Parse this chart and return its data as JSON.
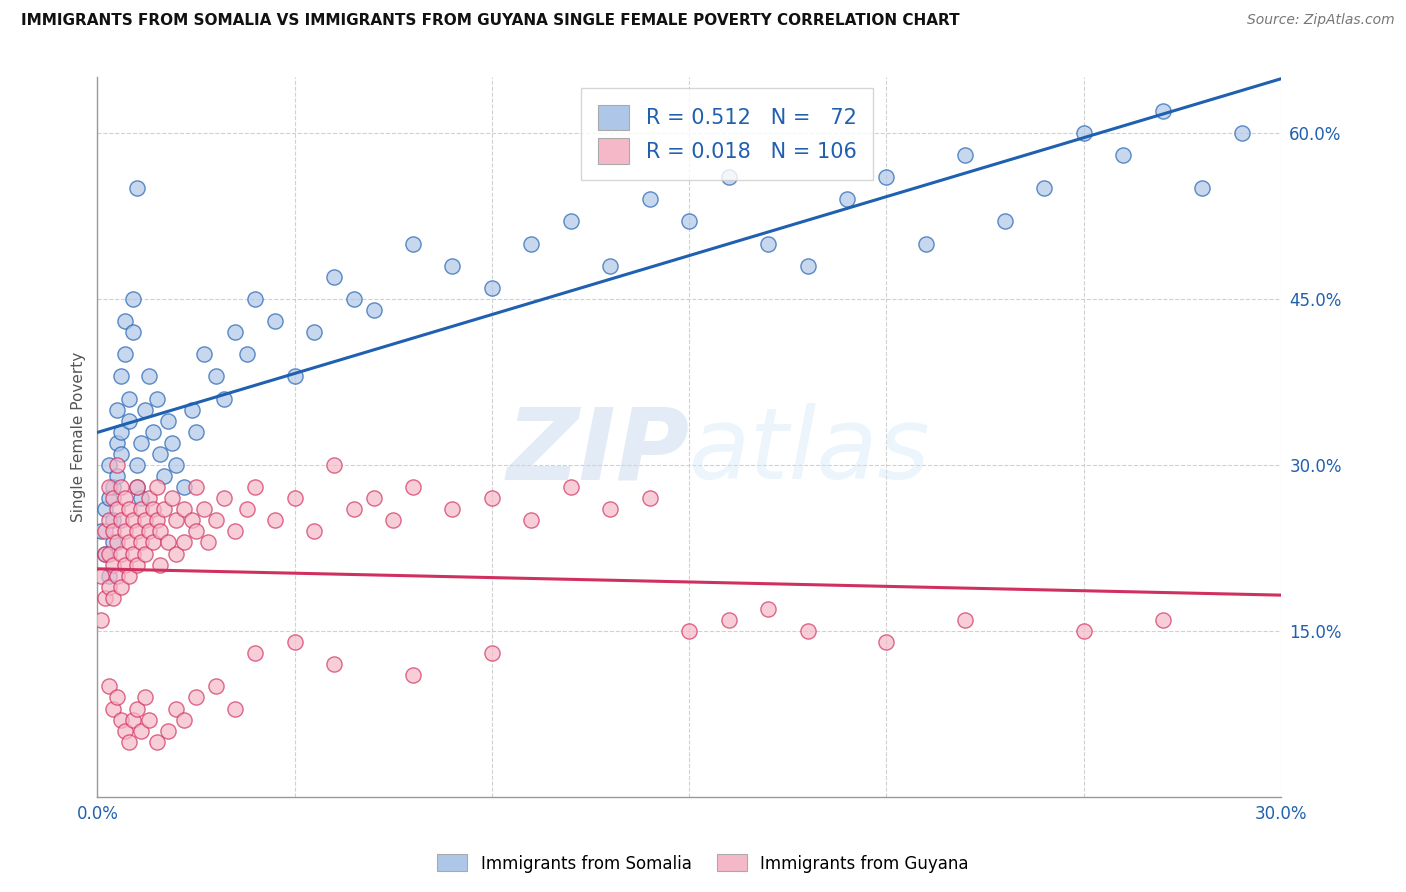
{
  "title": "IMMIGRANTS FROM SOMALIA VS IMMIGRANTS FROM GUYANA SINGLE FEMALE POVERTY CORRELATION CHART",
  "source": "Source: ZipAtlas.com",
  "ylabel": "Single Female Poverty",
  "xlim": [
    0.0,
    0.3
  ],
  "ylim": [
    0.0,
    0.65
  ],
  "R_somalia": 0.512,
  "N_somalia": 72,
  "R_guyana": 0.018,
  "N_guyana": 106,
  "color_somalia": "#aec6e8",
  "color_guyana": "#f5b8c8",
  "line_color_somalia": "#2060b0",
  "line_color_guyana": "#d03060",
  "accent_color": "#2060b0",
  "watermark_zip": "ZIP",
  "watermark_atlas": "atlas",
  "legend_somalia": "Immigrants from Somalia",
  "legend_guyana": "Immigrants from Guyana",
  "somalia_x": [
    0.001,
    0.002,
    0.002,
    0.003,
    0.003,
    0.003,
    0.004,
    0.004,
    0.004,
    0.005,
    0.005,
    0.005,
    0.006,
    0.006,
    0.006,
    0.007,
    0.007,
    0.008,
    0.008,
    0.009,
    0.009,
    0.01,
    0.01,
    0.011,
    0.011,
    0.012,
    0.013,
    0.014,
    0.015,
    0.016,
    0.017,
    0.018,
    0.019,
    0.02,
    0.022,
    0.024,
    0.025,
    0.027,
    0.03,
    0.032,
    0.035,
    0.038,
    0.04,
    0.045,
    0.05,
    0.055,
    0.06,
    0.065,
    0.07,
    0.08,
    0.09,
    0.1,
    0.11,
    0.12,
    0.13,
    0.14,
    0.15,
    0.16,
    0.17,
    0.18,
    0.19,
    0.2,
    0.21,
    0.22,
    0.23,
    0.24,
    0.25,
    0.26,
    0.27,
    0.28,
    0.29,
    0.01
  ],
  "somalia_y": [
    0.24,
    0.22,
    0.26,
    0.27,
    0.2,
    0.3,
    0.28,
    0.25,
    0.23,
    0.35,
    0.32,
    0.29,
    0.38,
    0.33,
    0.31,
    0.4,
    0.43,
    0.36,
    0.34,
    0.42,
    0.45,
    0.3,
    0.28,
    0.32,
    0.27,
    0.35,
    0.38,
    0.33,
    0.36,
    0.31,
    0.29,
    0.34,
    0.32,
    0.3,
    0.28,
    0.35,
    0.33,
    0.4,
    0.38,
    0.36,
    0.42,
    0.4,
    0.45,
    0.43,
    0.38,
    0.42,
    0.47,
    0.45,
    0.44,
    0.5,
    0.48,
    0.46,
    0.5,
    0.52,
    0.48,
    0.54,
    0.52,
    0.56,
    0.5,
    0.48,
    0.54,
    0.56,
    0.5,
    0.58,
    0.52,
    0.55,
    0.6,
    0.58,
    0.62,
    0.55,
    0.6,
    0.55
  ],
  "guyana_x": [
    0.001,
    0.001,
    0.002,
    0.002,
    0.002,
    0.003,
    0.003,
    0.003,
    0.003,
    0.004,
    0.004,
    0.004,
    0.004,
    0.005,
    0.005,
    0.005,
    0.005,
    0.006,
    0.006,
    0.006,
    0.006,
    0.007,
    0.007,
    0.007,
    0.008,
    0.008,
    0.008,
    0.009,
    0.009,
    0.01,
    0.01,
    0.01,
    0.011,
    0.011,
    0.012,
    0.012,
    0.013,
    0.013,
    0.014,
    0.014,
    0.015,
    0.015,
    0.016,
    0.016,
    0.017,
    0.018,
    0.019,
    0.02,
    0.02,
    0.022,
    0.022,
    0.024,
    0.025,
    0.025,
    0.027,
    0.028,
    0.03,
    0.032,
    0.035,
    0.038,
    0.04,
    0.045,
    0.05,
    0.055,
    0.06,
    0.065,
    0.07,
    0.075,
    0.08,
    0.09,
    0.1,
    0.11,
    0.12,
    0.13,
    0.14,
    0.15,
    0.16,
    0.17,
    0.18,
    0.2,
    0.22,
    0.25,
    0.27,
    0.003,
    0.004,
    0.005,
    0.006,
    0.007,
    0.008,
    0.009,
    0.01,
    0.011,
    0.012,
    0.013,
    0.015,
    0.018,
    0.02,
    0.022,
    0.025,
    0.03,
    0.035,
    0.04,
    0.05,
    0.06,
    0.08,
    0.1
  ],
  "guyana_y": [
    0.2,
    0.16,
    0.22,
    0.18,
    0.24,
    0.19,
    0.22,
    0.25,
    0.28,
    0.21,
    0.24,
    0.27,
    0.18,
    0.23,
    0.2,
    0.26,
    0.3,
    0.22,
    0.25,
    0.28,
    0.19,
    0.24,
    0.21,
    0.27,
    0.23,
    0.2,
    0.26,
    0.22,
    0.25,
    0.24,
    0.28,
    0.21,
    0.26,
    0.23,
    0.25,
    0.22,
    0.27,
    0.24,
    0.26,
    0.23,
    0.25,
    0.28,
    0.24,
    0.21,
    0.26,
    0.23,
    0.27,
    0.25,
    0.22,
    0.26,
    0.23,
    0.25,
    0.28,
    0.24,
    0.26,
    0.23,
    0.25,
    0.27,
    0.24,
    0.26,
    0.28,
    0.25,
    0.27,
    0.24,
    0.3,
    0.26,
    0.27,
    0.25,
    0.28,
    0.26,
    0.27,
    0.25,
    0.28,
    0.26,
    0.27,
    0.15,
    0.16,
    0.17,
    0.15,
    0.14,
    0.16,
    0.15,
    0.16,
    0.1,
    0.08,
    0.09,
    0.07,
    0.06,
    0.05,
    0.07,
    0.08,
    0.06,
    0.09,
    0.07,
    0.05,
    0.06,
    0.08,
    0.07,
    0.09,
    0.1,
    0.08,
    0.13,
    0.14,
    0.12,
    0.11,
    0.13
  ]
}
